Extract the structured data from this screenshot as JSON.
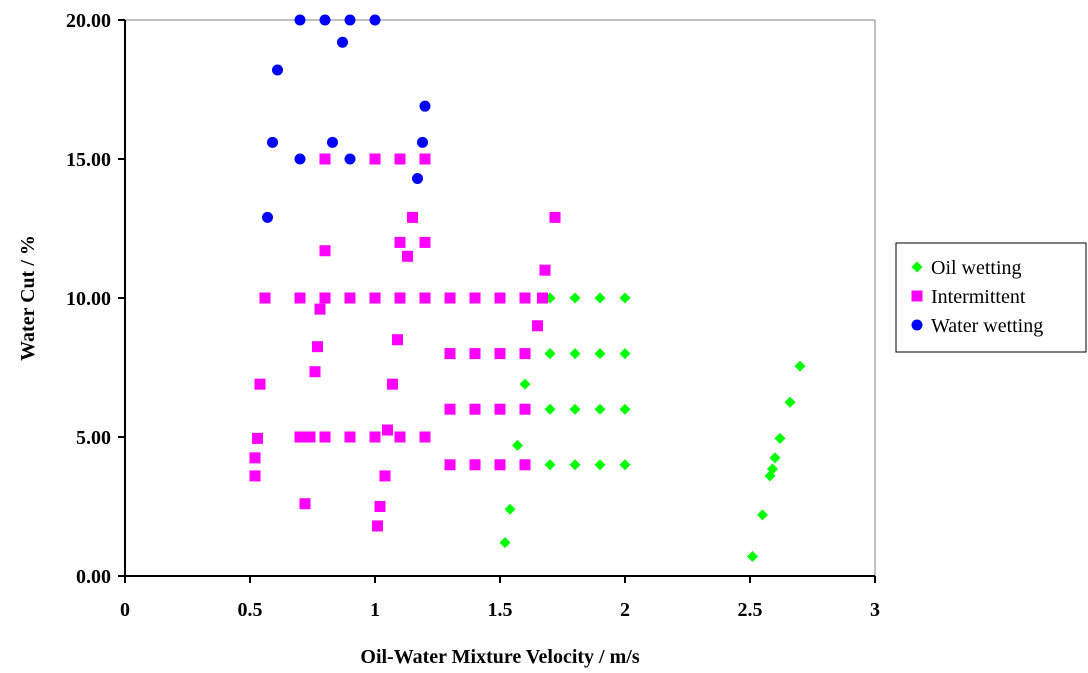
{
  "chart_data": {
    "type": "scatter",
    "xlabel": "Oil-Water Mixture Velocity  /  m/s",
    "ylabel": "Water Cut  /  %",
    "xlim": [
      0,
      3
    ],
    "ylim": [
      0,
      20
    ],
    "x_ticks": [
      "0",
      "0.5",
      "1",
      "1.5",
      "2",
      "2.5",
      "3"
    ],
    "y_ticks": [
      "0.00",
      "5.00",
      "10.00",
      "15.00",
      "20.00"
    ],
    "grid": false,
    "legend_position": "right",
    "series": [
      {
        "name": "Oil wetting",
        "marker": "diamond",
        "color": "#00ff00",
        "points": [
          [
            1.52,
            1.2
          ],
          [
            1.54,
            2.4
          ],
          [
            1.57,
            4.7
          ],
          [
            1.6,
            6.9
          ],
          [
            1.6,
            4.0
          ],
          [
            1.7,
            4.0
          ],
          [
            1.8,
            4.0
          ],
          [
            1.9,
            4.0
          ],
          [
            2.0,
            4.0
          ],
          [
            1.6,
            6.0
          ],
          [
            1.7,
            6.0
          ],
          [
            1.8,
            6.0
          ],
          [
            1.9,
            6.0
          ],
          [
            2.0,
            6.0
          ],
          [
            1.6,
            8.0
          ],
          [
            1.7,
            8.0
          ],
          [
            1.8,
            8.0
          ],
          [
            1.9,
            8.0
          ],
          [
            2.0,
            8.0
          ],
          [
            1.7,
            10.0
          ],
          [
            1.8,
            10.0
          ],
          [
            1.9,
            10.0
          ],
          [
            2.0,
            10.0
          ],
          [
            2.51,
            0.7
          ],
          [
            2.55,
            2.2
          ],
          [
            2.58,
            3.6
          ],
          [
            2.59,
            3.85
          ],
          [
            2.6,
            4.25
          ],
          [
            2.62,
            4.95
          ],
          [
            2.66,
            6.25
          ],
          [
            2.7,
            7.55
          ]
        ]
      },
      {
        "name": "Intermittent",
        "marker": "square",
        "color": "#ff00ff",
        "points": [
          [
            0.52,
            3.6
          ],
          [
            0.52,
            4.25
          ],
          [
            0.53,
            4.95
          ],
          [
            0.54,
            6.9
          ],
          [
            0.56,
            10.0
          ],
          [
            0.7,
            5.0
          ],
          [
            0.74,
            5.0
          ],
          [
            0.8,
            5.0
          ],
          [
            0.9,
            5.0
          ],
          [
            1.0,
            5.0
          ],
          [
            1.1,
            5.0
          ],
          [
            1.2,
            5.0
          ],
          [
            0.72,
            2.6
          ],
          [
            0.76,
            7.35
          ],
          [
            0.77,
            8.25
          ],
          [
            0.78,
            9.6
          ],
          [
            0.8,
            11.7
          ],
          [
            0.7,
            10.0
          ],
          [
            0.8,
            10.0
          ],
          [
            0.9,
            10.0
          ],
          [
            1.0,
            10.0
          ],
          [
            1.1,
            10.0
          ],
          [
            1.2,
            10.0
          ],
          [
            1.3,
            10.0
          ],
          [
            1.4,
            10.0
          ],
          [
            1.5,
            10.0
          ],
          [
            1.6,
            10.0
          ],
          [
            1.67,
            10.0
          ],
          [
            0.8,
            15.0
          ],
          [
            1.0,
            15.0
          ],
          [
            1.1,
            15.0
          ],
          [
            1.2,
            15.0
          ],
          [
            1.01,
            1.8
          ],
          [
            1.02,
            2.5
          ],
          [
            1.04,
            3.6
          ],
          [
            1.05,
            5.25
          ],
          [
            1.07,
            6.9
          ],
          [
            1.09,
            8.5
          ],
          [
            1.1,
            12.0
          ],
          [
            1.13,
            11.5
          ],
          [
            1.15,
            12.9
          ],
          [
            1.2,
            12.0
          ],
          [
            1.3,
            4.0
          ],
          [
            1.4,
            4.0
          ],
          [
            1.5,
            4.0
          ],
          [
            1.6,
            4.0
          ],
          [
            1.3,
            6.0
          ],
          [
            1.4,
            6.0
          ],
          [
            1.5,
            6.0
          ],
          [
            1.6,
            6.0
          ],
          [
            1.3,
            8.0
          ],
          [
            1.4,
            8.0
          ],
          [
            1.5,
            8.0
          ],
          [
            1.6,
            8.0
          ],
          [
            1.65,
            9.0
          ],
          [
            1.68,
            11.0
          ],
          [
            1.72,
            12.9
          ]
        ]
      },
      {
        "name": "Water wetting",
        "marker": "circle",
        "color": "#0000ff",
        "points": [
          [
            0.57,
            12.9
          ],
          [
            0.59,
            15.6
          ],
          [
            0.61,
            18.2
          ],
          [
            0.7,
            20.0
          ],
          [
            0.8,
            20.0
          ],
          [
            0.87,
            19.2
          ],
          [
            0.9,
            20.0
          ],
          [
            1.0,
            20.0
          ],
          [
            0.7,
            15.0
          ],
          [
            0.83,
            15.6
          ],
          [
            0.9,
            15.0
          ],
          [
            1.17,
            14.3
          ],
          [
            1.19,
            15.6
          ],
          [
            1.2,
            16.9
          ]
        ]
      }
    ]
  }
}
